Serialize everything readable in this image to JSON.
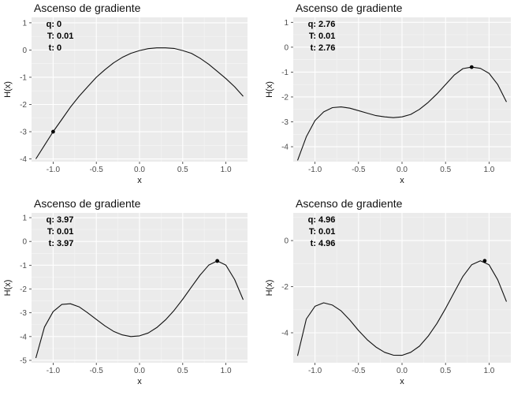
{
  "chart_data": [
    {
      "type": "line",
      "title": "Ascenso de gradiente",
      "xlabel": "x",
      "ylabel": "H(x)",
      "xlim": [
        -1.25,
        1.25
      ],
      "ylim": [
        -4.1,
        1.2
      ],
      "xticks": [
        -1.0,
        -0.5,
        0.0,
        0.5,
        1.0
      ],
      "xtick_labels": [
        "-1.0",
        "-0.5",
        "0.0",
        "0.5",
        "1.0"
      ],
      "yticks": [
        -4,
        -3,
        -2,
        -1,
        0,
        1
      ],
      "ytick_labels": [
        "-4",
        "-3",
        "-2",
        "-1",
        "0",
        "1"
      ],
      "grid": true,
      "series": [
        {
          "x": [
            -1.2,
            -1.1,
            -1.0,
            -0.9,
            -0.8,
            -0.7,
            -0.6,
            -0.5,
            -0.4,
            -0.3,
            -0.2,
            -0.1,
            0.0,
            0.1,
            0.2,
            0.3,
            0.4,
            0.5,
            0.6,
            0.7,
            0.8,
            0.9,
            1.0,
            1.1,
            1.2
          ],
          "values": [
            -4.0,
            -3.5,
            -3.0,
            -2.55,
            -2.1,
            -1.7,
            -1.35,
            -1.0,
            -0.72,
            -0.47,
            -0.27,
            -0.12,
            -0.02,
            0.05,
            0.08,
            0.08,
            0.06,
            -0.02,
            -0.12,
            -0.3,
            -0.52,
            -0.78,
            -1.05,
            -1.35,
            -1.7
          ]
        }
      ],
      "point": {
        "x": -1.0,
        "y": -3.0
      },
      "annotations": [
        {
          "key": "q",
          "value": "0"
        },
        {
          "key": "T",
          "value": "0.01"
        },
        {
          "key": "t",
          "value": "0"
        }
      ]
    },
    {
      "type": "line",
      "title": "Ascenso de gradiente",
      "xlabel": "x",
      "ylabel": "H(x)",
      "xlim": [
        -1.25,
        1.25
      ],
      "ylim": [
        -4.6,
        1.2
      ],
      "xticks": [
        -1.0,
        -0.5,
        0.0,
        0.5,
        1.0
      ],
      "xtick_labels": [
        "-1.0",
        "-0.5",
        "0.0",
        "0.5",
        "1.0"
      ],
      "yticks": [
        -4,
        -3,
        -2,
        -1,
        0,
        1
      ],
      "ytick_labels": [
        "-4",
        "-3",
        "-2",
        "-1",
        "0",
        "1"
      ],
      "grid": true,
      "series": [
        {
          "x": [
            -1.2,
            -1.1,
            -1.0,
            -0.9,
            -0.8,
            -0.7,
            -0.6,
            -0.5,
            -0.4,
            -0.3,
            -0.2,
            -0.1,
            0.0,
            0.1,
            0.2,
            0.3,
            0.4,
            0.5,
            0.6,
            0.7,
            0.8,
            0.9,
            1.0,
            1.1,
            1.2
          ],
          "values": [
            -4.55,
            -3.6,
            -2.95,
            -2.6,
            -2.43,
            -2.4,
            -2.45,
            -2.55,
            -2.65,
            -2.75,
            -2.8,
            -2.83,
            -2.8,
            -2.7,
            -2.5,
            -2.22,
            -1.88,
            -1.5,
            -1.12,
            -0.86,
            -0.8,
            -0.85,
            -1.05,
            -1.5,
            -2.2
          ]
        }
      ],
      "point": {
        "x": 0.8,
        "y": -0.8
      },
      "annotations": [
        {
          "key": "q",
          "value": "2.76"
        },
        {
          "key": "T",
          "value": "0.01"
        },
        {
          "key": "t",
          "value": "2.76"
        }
      ]
    },
    {
      "type": "line",
      "title": "Ascenso de gradiente",
      "xlabel": "x",
      "ylabel": "H(x)",
      "xlim": [
        -1.25,
        1.25
      ],
      "ylim": [
        -5.1,
        1.2
      ],
      "xticks": [
        -1.0,
        -0.5,
        0.0,
        0.5,
        1.0
      ],
      "xtick_labels": [
        "-1.0",
        "-0.5",
        "0.0",
        "0.5",
        "1.0"
      ],
      "yticks": [
        -5,
        -4,
        -3,
        -2,
        -1,
        0,
        1
      ],
      "ytick_labels": [
        "-5",
        "-4",
        "-3",
        "-2",
        "-1",
        "0",
        "1"
      ],
      "grid": true,
      "series": [
        {
          "x": [
            -1.2,
            -1.1,
            -1.0,
            -0.9,
            -0.8,
            -0.7,
            -0.6,
            -0.5,
            -0.4,
            -0.3,
            -0.2,
            -0.1,
            0.0,
            0.1,
            0.2,
            0.3,
            0.4,
            0.5,
            0.6,
            0.7,
            0.8,
            0.9,
            1.0,
            1.1,
            1.2
          ],
          "values": [
            -4.9,
            -3.6,
            -2.95,
            -2.65,
            -2.62,
            -2.75,
            -3.0,
            -3.28,
            -3.55,
            -3.78,
            -3.93,
            -4.0,
            -3.97,
            -3.85,
            -3.62,
            -3.3,
            -2.9,
            -2.43,
            -1.92,
            -1.42,
            -1.0,
            -0.82,
            -1.0,
            -1.6,
            -2.45
          ]
        }
      ],
      "point": {
        "x": 0.9,
        "y": -0.82
      },
      "annotations": [
        {
          "key": "q",
          "value": "3.97"
        },
        {
          "key": "T",
          "value": "0.01"
        },
        {
          "key": "t",
          "value": "3.97"
        }
      ]
    },
    {
      "type": "line",
      "title": "Ascenso de gradiente",
      "xlabel": "x",
      "ylabel": "H(x)",
      "xlim": [
        -1.25,
        1.25
      ],
      "ylim": [
        -5.3,
        1.2
      ],
      "xticks": [
        -1.0,
        -0.5,
        0.0,
        0.5,
        1.0
      ],
      "xtick_labels": [
        "-1.0",
        "-0.5",
        "0.0",
        "0.5",
        "1.0"
      ],
      "yticks": [
        -4,
        -2,
        0
      ],
      "ytick_labels": [
        "-4",
        "-2",
        "0"
      ],
      "grid": true,
      "series": [
        {
          "x": [
            -1.2,
            -1.1,
            -1.0,
            -0.9,
            -0.8,
            -0.7,
            -0.6,
            -0.5,
            -0.4,
            -0.3,
            -0.2,
            -0.1,
            0.0,
            0.1,
            0.2,
            0.3,
            0.4,
            0.5,
            0.6,
            0.7,
            0.8,
            0.9,
            1.0,
            1.1,
            1.2
          ],
          "values": [
            -5.0,
            -3.4,
            -2.85,
            -2.7,
            -2.8,
            -3.05,
            -3.45,
            -3.9,
            -4.3,
            -4.62,
            -4.85,
            -4.97,
            -4.98,
            -4.85,
            -4.58,
            -4.15,
            -3.6,
            -2.95,
            -2.25,
            -1.55,
            -1.05,
            -0.88,
            -1.05,
            -1.7,
            -2.65
          ]
        }
      ],
      "point": {
        "x": 0.95,
        "y": -0.88
      },
      "annotations": [
        {
          "key": "q",
          "value": "4.96"
        },
        {
          "key": "T",
          "value": "0.01"
        },
        {
          "key": "t",
          "value": "4.96"
        }
      ]
    }
  ]
}
